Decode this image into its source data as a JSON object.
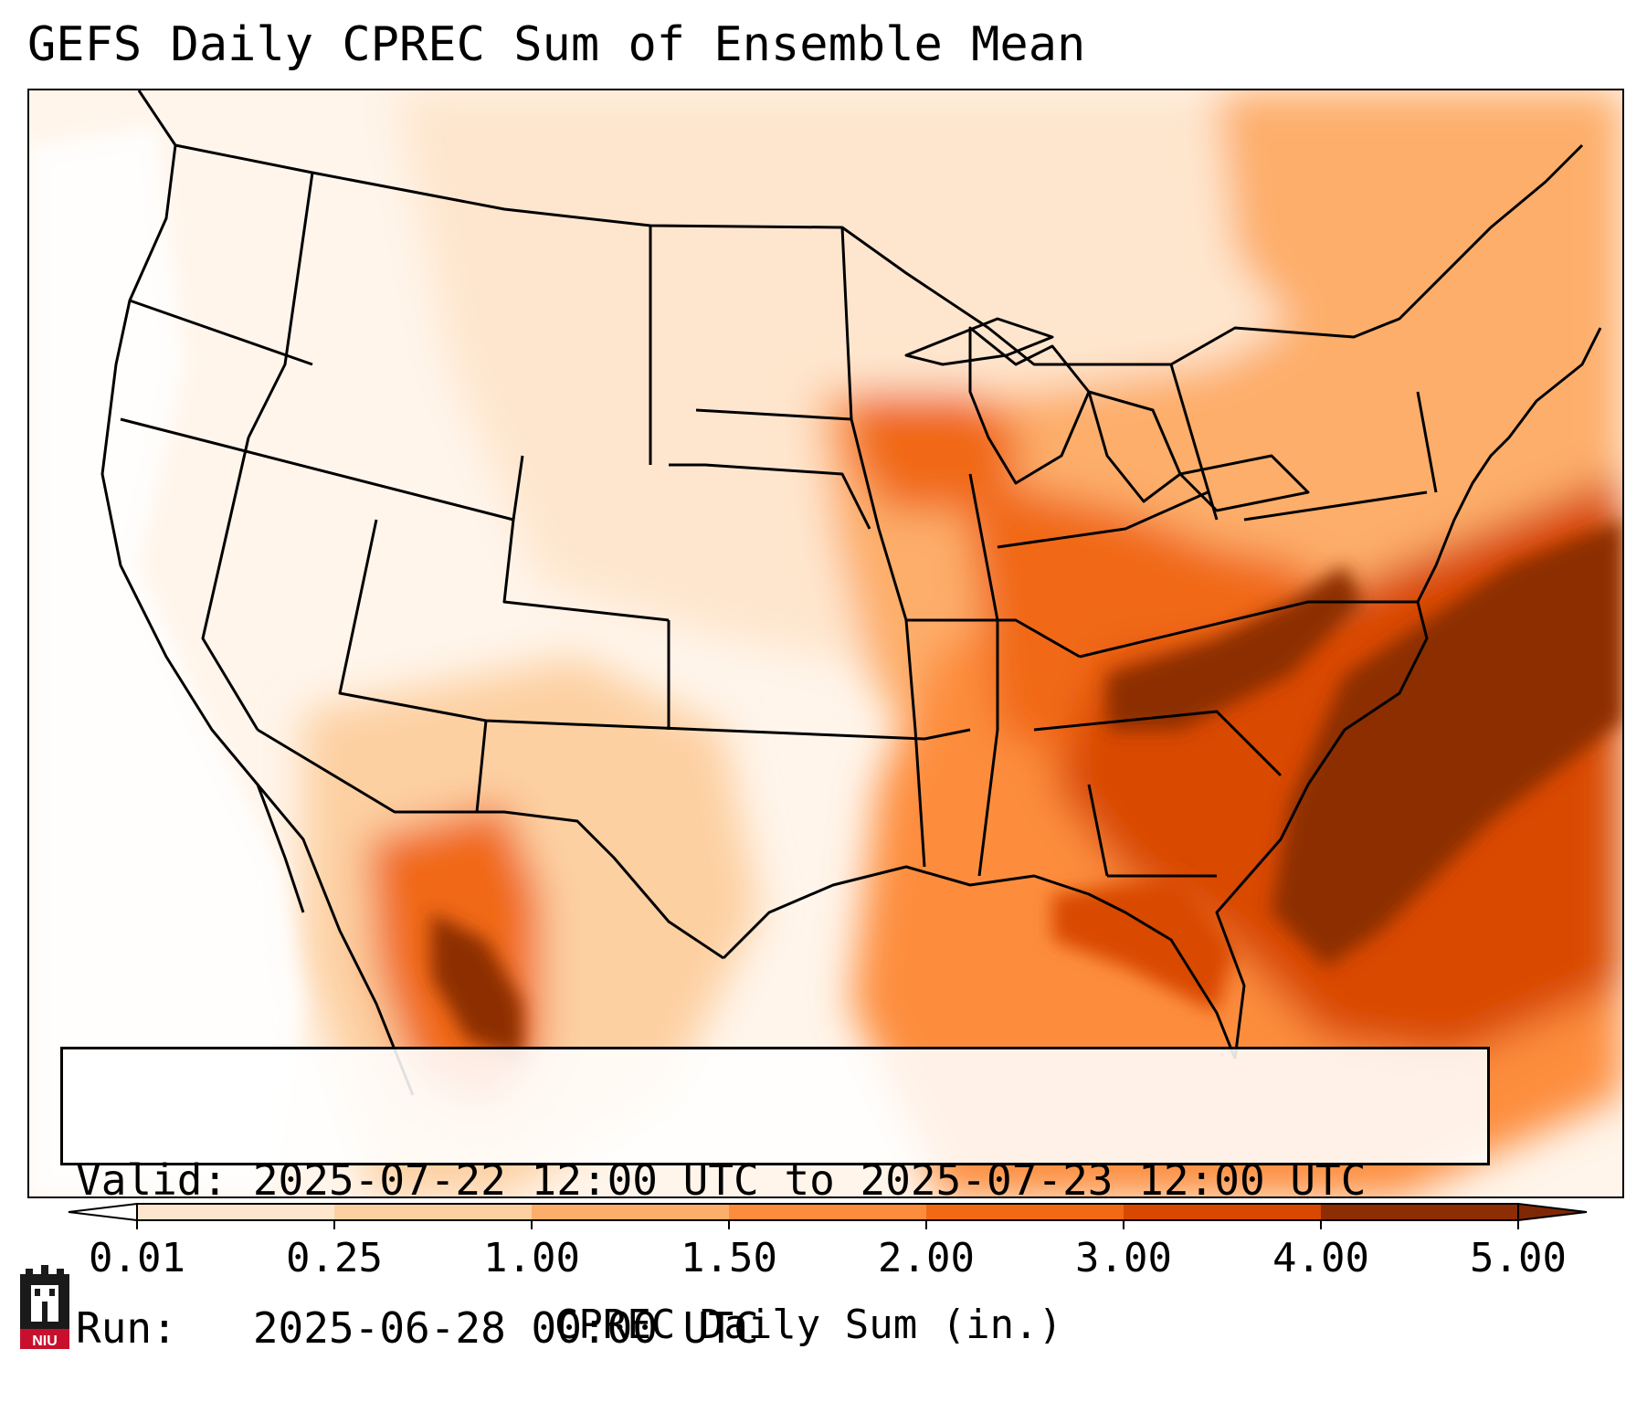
{
  "title": "GEFS Daily CPREC Sum of Ensemble Mean",
  "info": {
    "valid": "Valid: 2025-07-22 12:00 UTC to 2025-07-23 12:00 UTC",
    "run": "Run:   2025-06-28 00:00 UTC"
  },
  "colorbar": {
    "label": "CPREC Daily Sum (in.)",
    "ticks": [
      "0.01",
      "0.25",
      "1.00",
      "1.50",
      "2.00",
      "3.00",
      "4.00",
      "5.00"
    ],
    "colors": [
      "#fff5eb",
      "#fee6ce",
      "#fdd0a2",
      "#fdae6b",
      "#fd8d3c",
      "#f16913",
      "#d94801",
      "#8c2d04"
    ],
    "under_color": "#ffffff",
    "over_color": "#7f2704"
  },
  "logo": {
    "text": "NIU",
    "icon": "niu-castle-icon",
    "color": "#c8102e"
  },
  "map": {
    "region": "Contiguous United States",
    "variable": "Convective precipitation daily sum (in.)",
    "max_region": "Southeast US / Atlantic coast",
    "secondary_max_region": "Northwest Mexico"
  }
}
